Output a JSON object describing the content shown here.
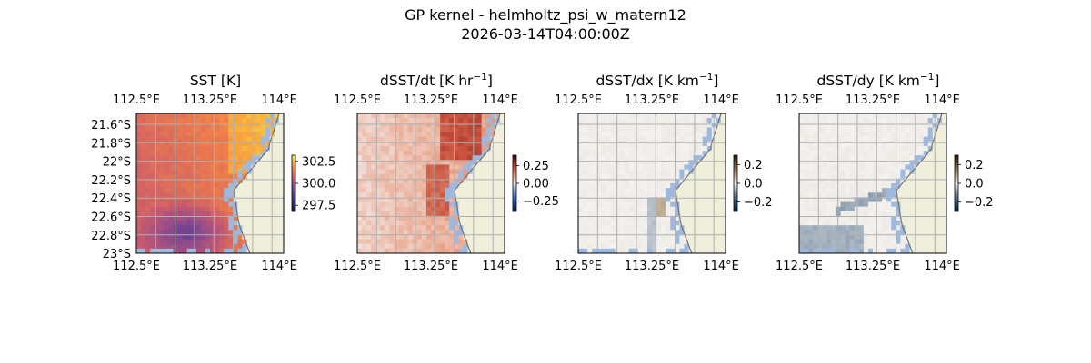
{
  "figure": {
    "suptitle_line1": "GP kernel - helmholtz_psi_w_matern12",
    "suptitle_line2": "2026-03-14T04:00:00Z"
  },
  "colors": {
    "land": "#efefdc",
    "water_mask": "#9db9e0",
    "grid": "#b0b0b0",
    "coast": "#6f6f6f"
  },
  "chart_data": [
    {
      "type": "heatmap",
      "title": "SST [K]",
      "title_unit_base": "SST [K]",
      "title_sup": "",
      "title_tail": "",
      "colormap": "thermal",
      "xlim": [
        112.5,
        114.1
      ],
      "ylim": [
        -23.02,
        -21.5
      ],
      "xticks": [
        "112.5°E",
        "113.25°E",
        "114°E"
      ],
      "yticks": [
        "21.6°S",
        "21.8°S",
        "22°S",
        "22.2°S",
        "22.4°S",
        "22.6°S",
        "22.8°S",
        "23°S"
      ],
      "show_yticks": true,
      "colorbar": {
        "ticks": [
          "302.5",
          "300.0",
          "297.5"
        ],
        "tick_values": [
          302.5,
          300.0,
          297.5
        ],
        "vmin": 296.8,
        "vmax": 303.2
      },
      "field_description": "warm (~301-302 K) across north and east, cooler (~299 K) pocket in southwest"
    },
    {
      "type": "heatmap",
      "title_unit_base": "dSST/dt [K hr",
      "title_sup": "−1",
      "title_tail": "]",
      "colormap": "balance",
      "xlim": [
        112.5,
        114.1
      ],
      "ylim": [
        -23.02,
        -21.5
      ],
      "xticks": [
        "112.5°E",
        "113.25°E",
        "114°E"
      ],
      "show_yticks": false,
      "colorbar": {
        "ticks": [
          "0.25",
          "0.00",
          "−0.25"
        ],
        "tick_values": [
          0.25,
          0.0,
          -0.25
        ],
        "vmin": -0.4,
        "vmax": 0.4
      },
      "field_description": "mostly weak positive, stronger positive near the coast and in a central streak"
    },
    {
      "type": "heatmap",
      "title_unit_base": "dSST/dx [K km",
      "title_sup": "−1",
      "title_tail": "]",
      "colormap": "diff",
      "xlim": [
        112.5,
        114.1
      ],
      "ylim": [
        -23.02,
        -21.5
      ],
      "xticks": [
        "112.5°E",
        "113.25°E",
        "114°E"
      ],
      "show_yticks": false,
      "colorbar": {
        "ticks": [
          "0.2",
          "0.0",
          "−0.2"
        ],
        "tick_values": [
          0.2,
          0.0,
          -0.2
        ],
        "vmin": -0.3,
        "vmax": 0.3
      },
      "field_description": "near zero everywhere with faint streaks"
    },
    {
      "type": "heatmap",
      "title_unit_base": "dSST/dy [K km",
      "title_sup": "−1",
      "title_tail": "]",
      "colormap": "diff",
      "xlim": [
        112.5,
        114.1
      ],
      "ylim": [
        -23.02,
        -21.5
      ],
      "xticks": [
        "112.5°E",
        "113.25°E",
        "114°E"
      ],
      "show_yticks": false,
      "colorbar": {
        "ticks": [
          "0.2",
          "0.0",
          "−0.2"
        ],
        "tick_values": [
          0.2,
          0.0,
          -0.2
        ],
        "vmin": -0.3,
        "vmax": 0.3
      },
      "field_description": "near zero with faint negative bands in the south"
    }
  ]
}
